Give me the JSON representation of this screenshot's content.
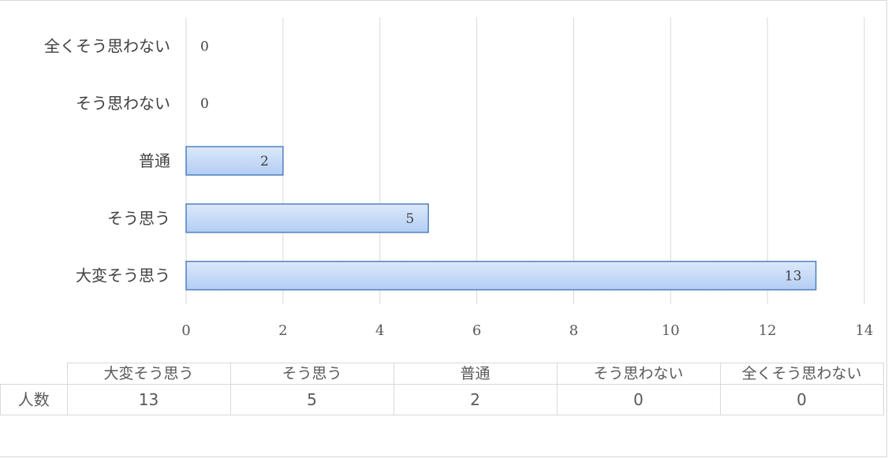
{
  "chart_data": {
    "type": "bar",
    "orientation": "horizontal",
    "categories": [
      "大変そう思う",
      "そう思う",
      "普通",
      "そう思わない",
      "全くそう思わない"
    ],
    "series": [
      {
        "name": "人数",
        "values": [
          13,
          5,
          2,
          0,
          0
        ]
      }
    ],
    "xlim": [
      0,
      14
    ],
    "x_ticks": [
      "0",
      "2",
      "4",
      "6",
      "8",
      "10",
      "12",
      "14"
    ],
    "grid": "vertical",
    "legend": "none",
    "bar_fill_start": "#dce9fb",
    "bar_fill_end": "#b3cdf3",
    "bar_border": "#4f81bd"
  },
  "table": {
    "row_header": "人数",
    "columns": [
      "大変そう思う",
      "そう思う",
      "普通",
      "そう思わない",
      "全くそう思わない"
    ],
    "values": [
      "13",
      "5",
      "2",
      "0",
      "0"
    ]
  }
}
